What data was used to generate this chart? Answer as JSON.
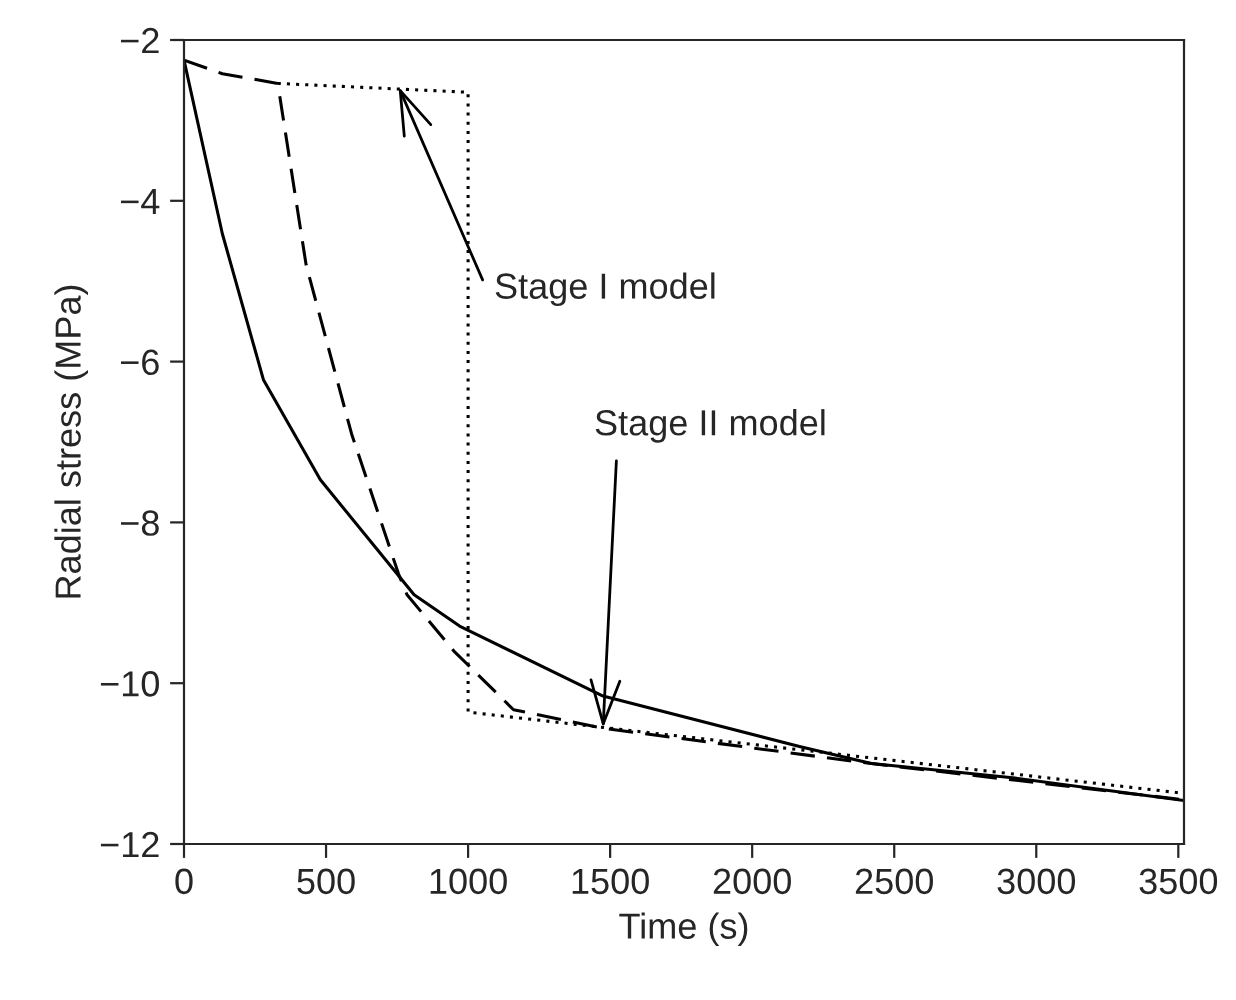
{
  "chart_data": {
    "type": "line",
    "xlabel": "Time (s)",
    "ylabel": "Radial stress (MPa)",
    "xlim": [
      0,
      3520
    ],
    "xticks": [
      0,
      500,
      1000,
      1500,
      2000,
      2500,
      3000,
      3500
    ],
    "ylim": [
      -12,
      -2
    ],
    "yticks": [
      -12,
      -10,
      -8,
      -6,
      -4,
      -2
    ],
    "grid": false,
    "legend": false,
    "series": [
      {
        "color": "#000000",
        "line_style": "solid",
        "x": [
          0,
          135,
          280,
          480,
          810,
          970,
          1475,
          2170,
          2420,
          2925,
          3520
        ],
        "values": [
          -2.25,
          -4.41,
          -6.23,
          -7.47,
          -8.9,
          -9.29,
          -10.16,
          -10.79,
          -11.0,
          -11.18,
          -11.46
        ]
      },
      {
        "color": "#000000",
        "line_style": "dashed",
        "x": [
          0,
          135,
          330,
          430,
          590,
          755,
          785,
          950,
          1160,
          1475,
          2420,
          3520
        ],
        "values": [
          -2.25,
          -2.42,
          -2.54,
          -4.8,
          -6.9,
          -8.64,
          -8.9,
          -9.6,
          -10.33,
          -10.56,
          -11.0,
          -11.45
        ]
      },
      {
        "color": "#000000",
        "line_style": "dotted",
        "x": [
          330,
          1000,
          1000,
          3520
        ],
        "values": [
          -2.54,
          -2.65,
          -10.36,
          -11.37
        ]
      }
    ],
    "annotations": [
      {
        "text": "Stage I model",
        "x": 755,
        "y": -2.58
      },
      {
        "text": "Stage II model",
        "x": 1475,
        "y": -10.56
      }
    ]
  }
}
